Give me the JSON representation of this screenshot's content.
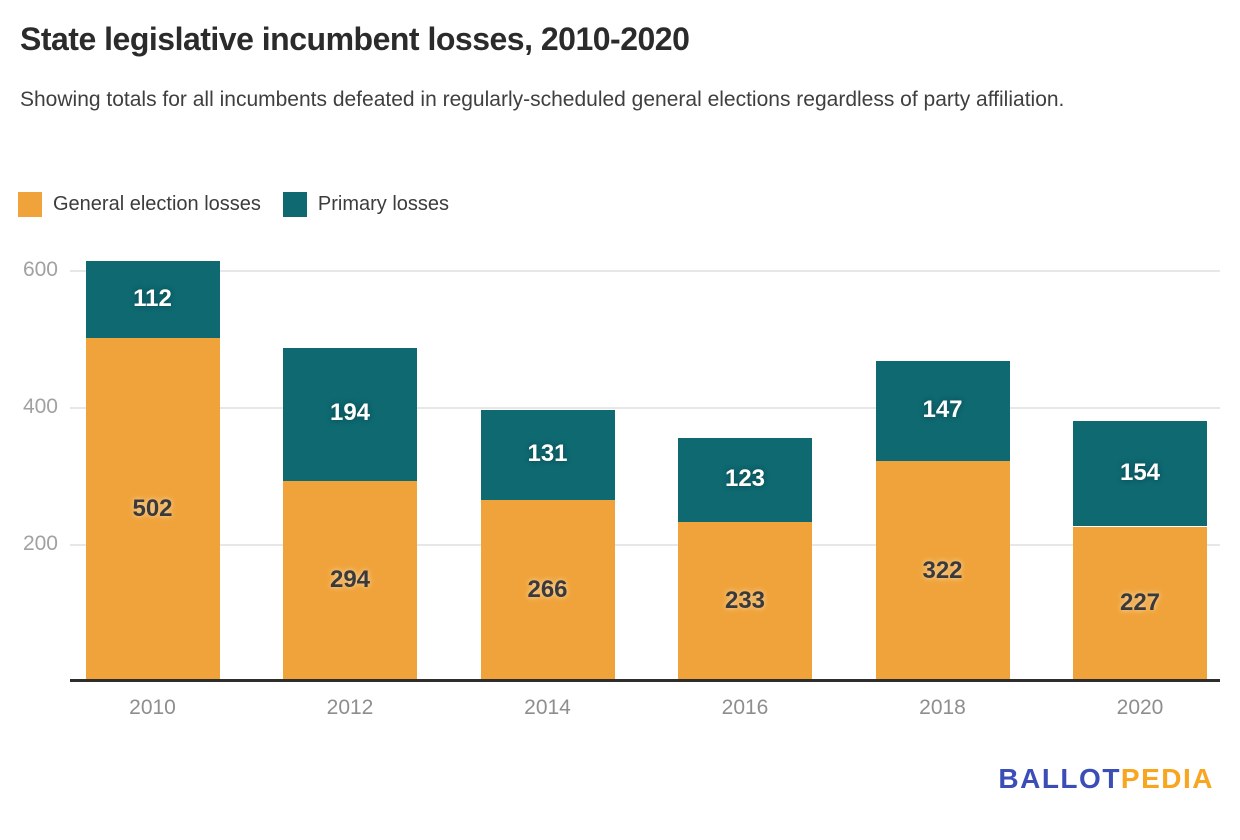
{
  "header": {
    "title": "State legislative incumbent losses, 2010-2020",
    "subtitle": "Showing totals for all incumbents defeated in regularly-scheduled general elections regardless of party affiliation."
  },
  "legend": [
    {
      "label": "General election losses",
      "color": "#F0A33A"
    },
    {
      "label": "Primary losses",
      "color": "#0E6971"
    }
  ],
  "chart_data": {
    "type": "bar",
    "stacked": true,
    "title": "State legislative incumbent losses, 2010-2020",
    "categories": [
      "2010",
      "2012",
      "2014",
      "2016",
      "2018",
      "2020"
    ],
    "series": [
      {
        "name": "General election losses",
        "color": "#F0A33A",
        "label_color": "#3A3A3A",
        "values": [
          502,
          294,
          266,
          233,
          322,
          227
        ]
      },
      {
        "name": "Primary losses",
        "color": "#0E6971",
        "label_color": "#FFFFFF",
        "values": [
          112,
          194,
          131,
          123,
          147,
          154
        ]
      }
    ],
    "totals": [
      614,
      488,
      397,
      356,
      469,
      381
    ],
    "xlabel": "",
    "ylabel": "",
    "y_ticks": [
      200,
      400,
      600
    ],
    "ylim": [
      0,
      620
    ],
    "grid": "horizontal",
    "legend_position": "top-left",
    "value_labels": "centered-in-segment"
  },
  "branding": {
    "logo_part1": "BALLOT",
    "logo_part2": "PEDIA",
    "logo_blue": "#3B4EB8",
    "logo_orange": "#F8A51F"
  }
}
